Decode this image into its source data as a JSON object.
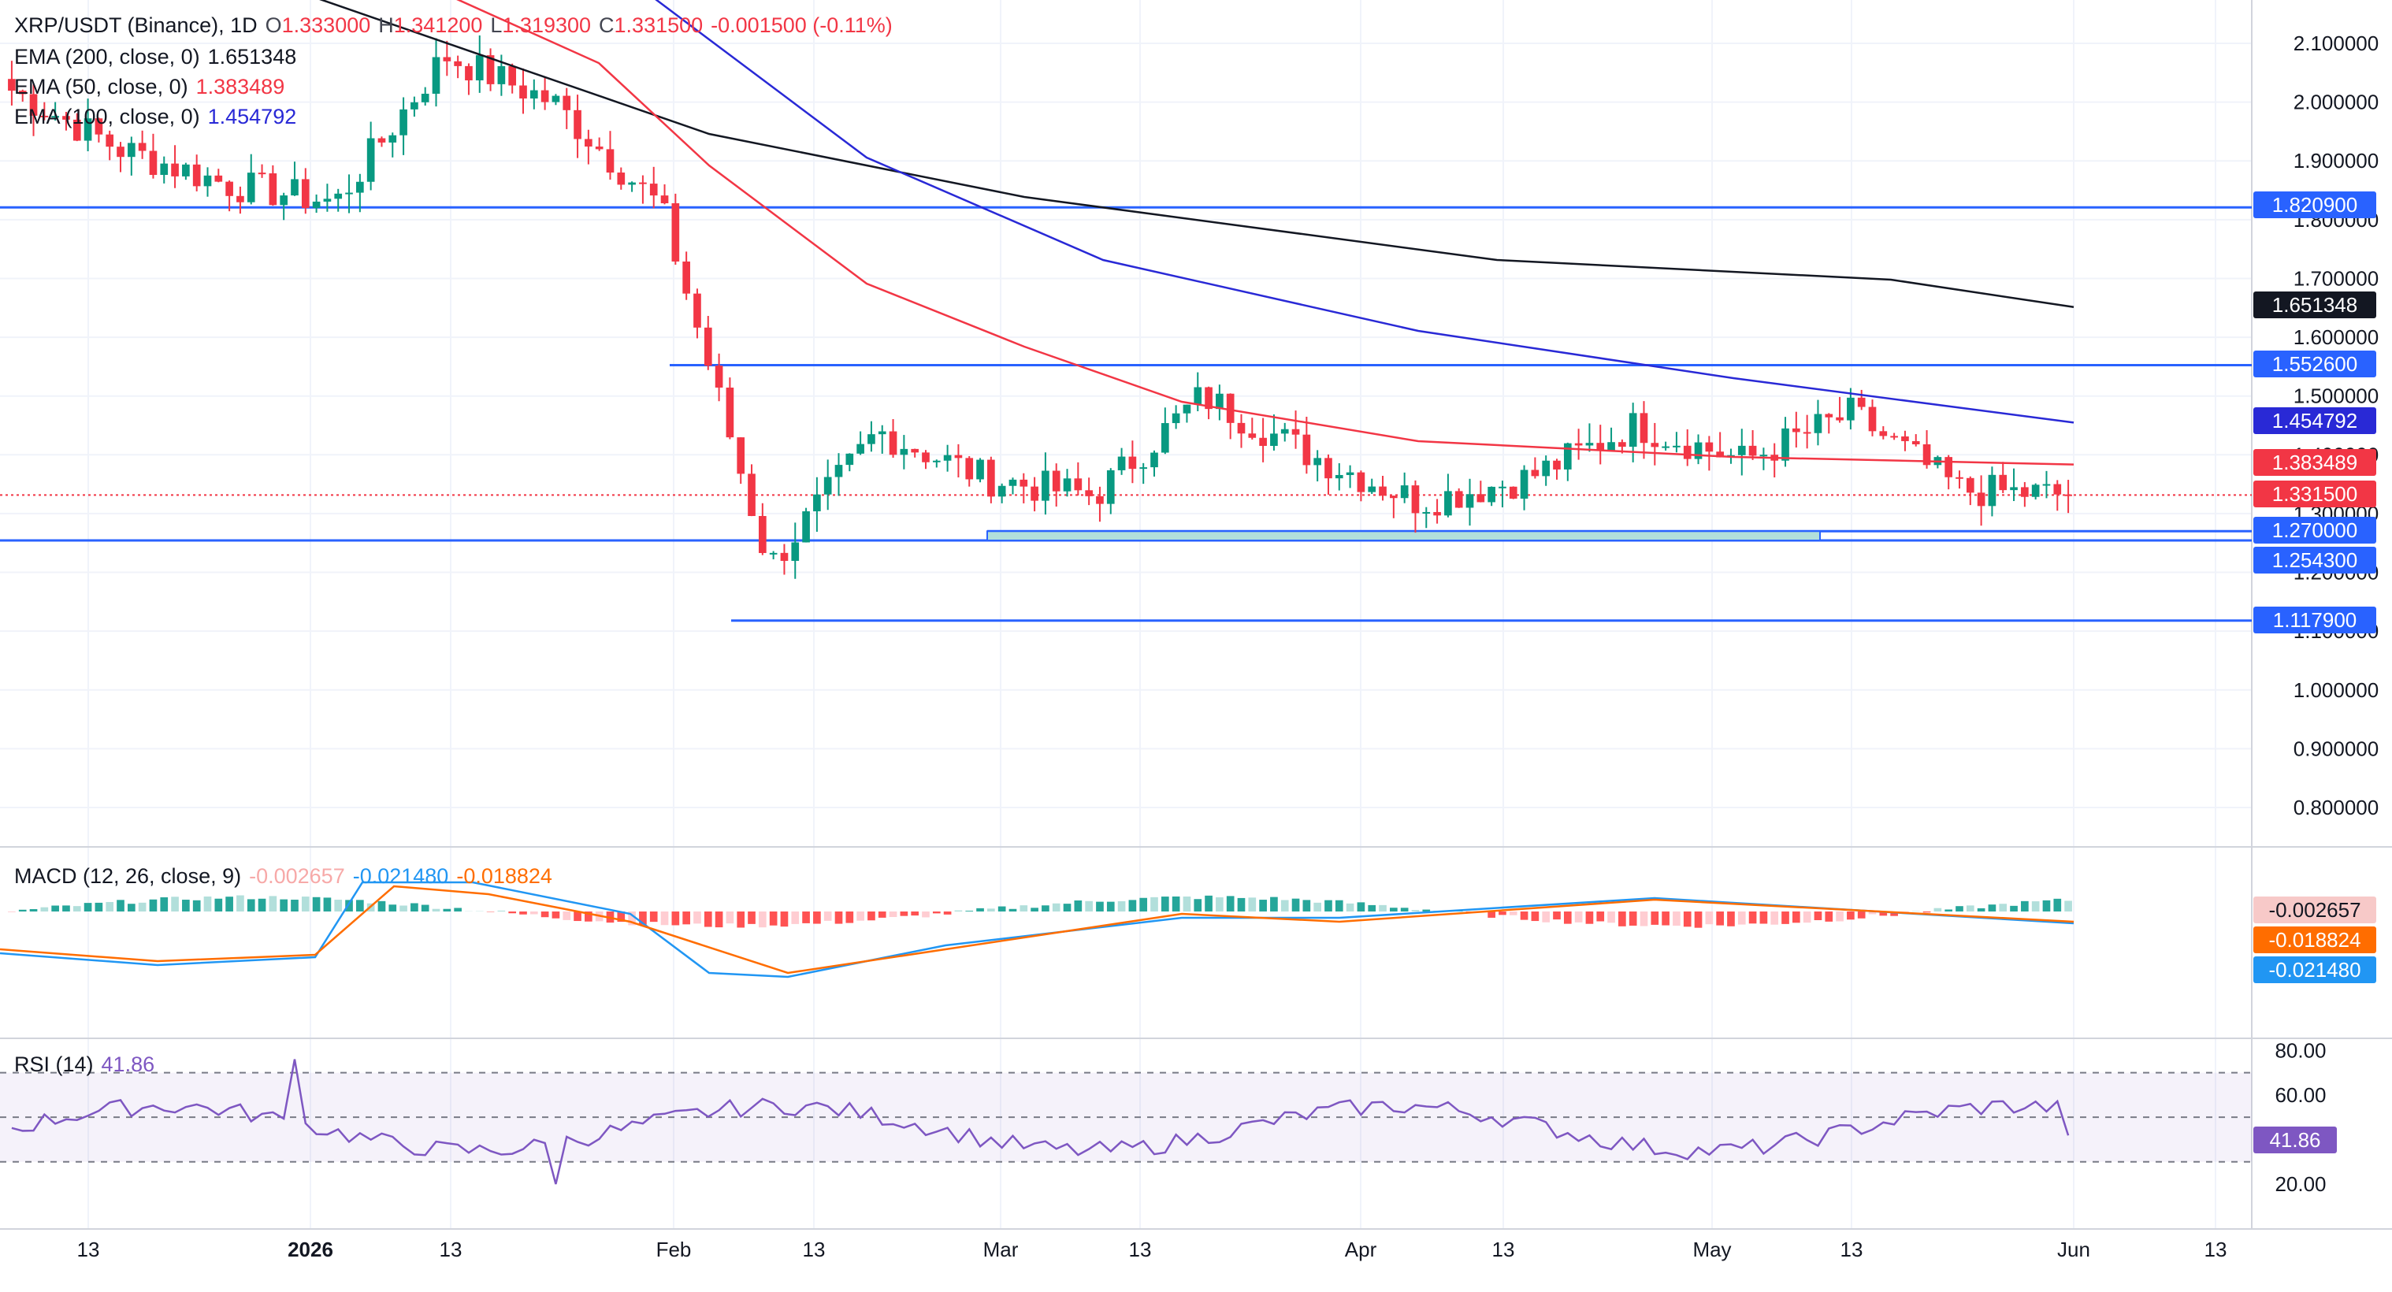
{
  "header": {
    "symbol": "XRP/USDT (Binance), 1D",
    "open_label": "O",
    "open": "1.333000",
    "high_label": "H",
    "high": "1.341200",
    "low_label": "L",
    "low": "1.319300",
    "close_label": "C",
    "close": "1.331500",
    "change": "-0.001500 (-0.11%)"
  },
  "indicators": {
    "ema200": {
      "label": "EMA (200, close, 0)",
      "value": "1.651348",
      "color": "#131722"
    },
    "ema50": {
      "label": "EMA (50, close, 0)",
      "value": "1.383489",
      "color": "#f23645"
    },
    "ema100": {
      "label": "EMA (100, close, 0)",
      "value": "1.454792",
      "color": "#2929d6"
    },
    "macd": {
      "label": "MACD (12, 26, close, 9)",
      "hist": "-0.002657",
      "macd": "-0.021480",
      "signal": "-0.018824"
    },
    "rsi": {
      "label": "RSI (14)",
      "value": "41.86"
    }
  },
  "price_axis": [
    "2.100000",
    "2.000000",
    "1.900000",
    "1.800000",
    "1.700000",
    "1.600000",
    "1.500000",
    "1.400000",
    "1.300000",
    "1.200000",
    "1.100000",
    "1.000000",
    "0.900000",
    "0.800000"
  ],
  "rsi_axis": [
    "80.00",
    "60.00",
    "40.00",
    "20.00"
  ],
  "time_axis": [
    "13",
    "2026",
    "13",
    "Feb",
    "13",
    "Mar",
    "13",
    "Apr",
    "13",
    "May",
    "13",
    "Jun",
    "13"
  ],
  "levels": [
    "1.820900",
    "1.552600",
    "1.270000",
    "1.254300",
    "1.117900"
  ],
  "tags": {
    "l1": "1.820900",
    "ema200": "1.651348",
    "l2": "1.552600",
    "ema100": "1.454792",
    "ema50": "1.383489",
    "last": "1.331500",
    "l3": "1.270000",
    "l4": "1.254300",
    "l5": "1.117900",
    "hist": "-0.002657",
    "signal": "-0.018824",
    "macd": "-0.021480",
    "rsi": "41.86"
  },
  "colors": {
    "up": "#089981",
    "down": "#f23645",
    "level": "#2962ff",
    "ema50": "#f23645",
    "ema100": "#2929d6",
    "ema200": "#131722",
    "macd": "#2196f3",
    "signal": "#ff6d00",
    "rsi": "#7e57c2"
  },
  "chart_data": {
    "type": "candlestick",
    "title": "XRP/USDT (Binance), 1D",
    "ylim": [
      0.75,
      2.15
    ],
    "x": [
      "2025-12-06",
      "2025-12-13",
      "2025-12-20",
      "2026-01-01",
      "2026-01-13",
      "2026-01-20",
      "2026-02-01",
      "2026-02-07",
      "2026-02-13",
      "2026-02-20",
      "2026-03-01",
      "2026-03-13",
      "2026-03-20",
      "2026-04-01",
      "2026-04-13",
      "2026-04-20",
      "2026-05-01",
      "2026-05-13",
      "2026-05-20",
      "2026-06-01"
    ],
    "close": [
      2.02,
      1.92,
      1.86,
      1.83,
      2.08,
      2.0,
      1.82,
      1.21,
      1.44,
      1.36,
      1.33,
      1.5,
      1.4,
      1.32,
      1.36,
      1.45,
      1.39,
      1.47,
      1.34,
      1.3315
    ],
    "horizontal_levels": [
      1.8209,
      1.5526,
      1.27,
      1.2543,
      1.1179
    ],
    "ema200_last": 1.651348,
    "ema50_last": 1.383489,
    "ema100_last": 1.454792,
    "last_price": 1.3315
  }
}
